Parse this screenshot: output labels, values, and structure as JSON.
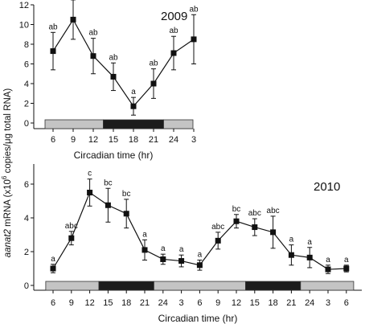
{
  "figure": {
    "ylabel_prefix": "aanat2",
    "ylabel_suffix": " mRNA (x10",
    "ylabel_exp": "6",
    "ylabel_units": " copies/μg total RNA)"
  },
  "chart_data": [
    {
      "type": "line",
      "panel_label": "2009",
      "xlabel": "Circadian  time  (hr)",
      "ylabel": "aanat2 mRNA (x10^6 copies/μg total RNA)",
      "x_tick_labels": [
        "6",
        "9",
        "12",
        "15",
        "18",
        "21",
        "24",
        "3"
      ],
      "ylim": [
        0,
        12
      ],
      "yticks": [
        0,
        2,
        4,
        6,
        8,
        10,
        12
      ],
      "series": [
        {
          "values": [
            7.3,
            10.5,
            6.8,
            4.7,
            1.7,
            4.0,
            7.1,
            8.5
          ],
          "error": [
            1.9,
            2.0,
            1.8,
            1.4,
            0.9,
            1.5,
            1.7,
            2.5
          ],
          "significance_labels": [
            "ab",
            "b",
            "ab",
            "ab",
            "a",
            "ab",
            "ab",
            "ab"
          ]
        }
      ],
      "light_dark_bar": [
        {
          "state": "light",
          "from_index": -0.4,
          "to_index": 2.5
        },
        {
          "state": "dark",
          "from_index": 2.5,
          "to_index": 5.5
        },
        {
          "state": "light",
          "from_index": 5.5,
          "to_index": 7.4
        }
      ]
    },
    {
      "type": "line",
      "panel_label": "2010",
      "xlabel": "Circadian  time  (hr)",
      "ylabel": "aanat2 mRNA (x10^6 copies/μg total RNA)",
      "x_tick_labels": [
        "6",
        "9",
        "12",
        "15",
        "18",
        "21",
        "24",
        "3",
        "6",
        "9",
        "12",
        "15",
        "18",
        "21",
        "24",
        "3",
        "6"
      ],
      "ylim": [
        0,
        7
      ],
      "yticks": [
        0,
        2,
        4,
        6
      ],
      "series": [
        {
          "values": [
            1.0,
            2.8,
            5.5,
            4.75,
            4.25,
            2.1,
            1.55,
            1.45,
            1.2,
            2.65,
            3.8,
            3.45,
            3.15,
            1.8,
            1.65,
            0.95,
            1.0
          ],
          "error": [
            0.25,
            0.4,
            0.8,
            1.0,
            0.85,
            0.6,
            0.3,
            0.35,
            0.3,
            0.5,
            0.4,
            0.5,
            0.95,
            0.6,
            0.6,
            0.25,
            0.2
          ],
          "significance_labels": [
            "a",
            "abc",
            "c",
            "bc",
            "bc",
            "a",
            "a",
            "a",
            "a",
            "abc",
            "bc",
            "abc",
            "abc",
            "a",
            "a",
            "a",
            "a"
          ]
        }
      ],
      "light_dark_bar": [
        {
          "state": "light",
          "from_index": -0.4,
          "to_index": 2.5
        },
        {
          "state": "dark",
          "from_index": 2.5,
          "to_index": 5.5
        },
        {
          "state": "light",
          "from_index": 5.5,
          "to_index": 10.5
        },
        {
          "state": "dark",
          "from_index": 10.5,
          "to_index": 13.5
        },
        {
          "state": "light",
          "from_index": 13.5,
          "to_index": 16.4
        }
      ]
    }
  ]
}
